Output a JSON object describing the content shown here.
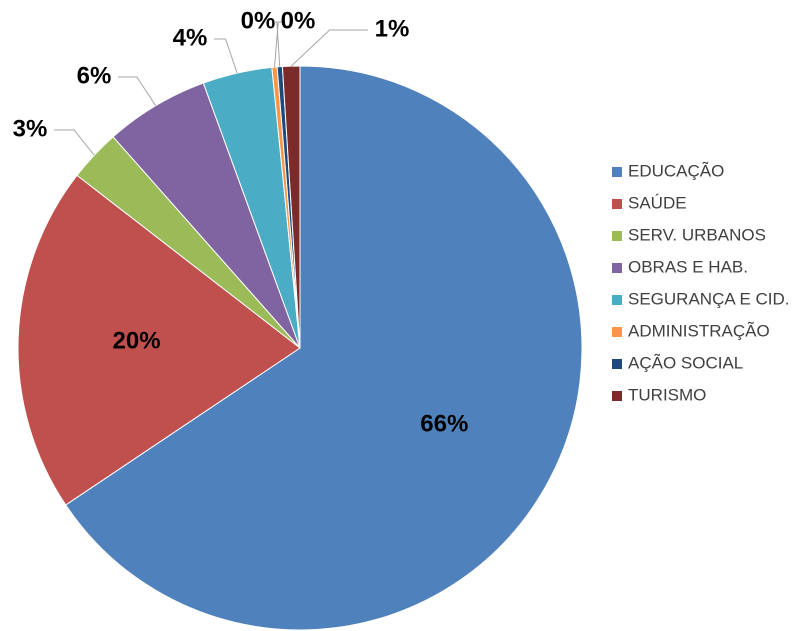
{
  "chart_data": {
    "type": "pie",
    "categories": [
      "EDUCAÇÃO",
      "SAÚDE",
      "SERV. URBANOS",
      "OBRAS E HAB.",
      "SEGURANÇA E CID.",
      "ADMINISTRAÇÃO",
      "AÇÃO SOCIAL",
      "TURISMO"
    ],
    "values": [
      66,
      20,
      3,
      6,
      4,
      0.3,
      0.3,
      1
    ],
    "value_labels": [
      "66%",
      "20%",
      "3%",
      "6%",
      "4%",
      "0%",
      "0%",
      "1%"
    ],
    "colors": [
      "#4f81bd",
      "#c0504d",
      "#9bbb59",
      "#8064a2",
      "#4bacc6",
      "#f79646",
      "#1f497d",
      "#7b2c2a"
    ],
    "legend": "right"
  }
}
